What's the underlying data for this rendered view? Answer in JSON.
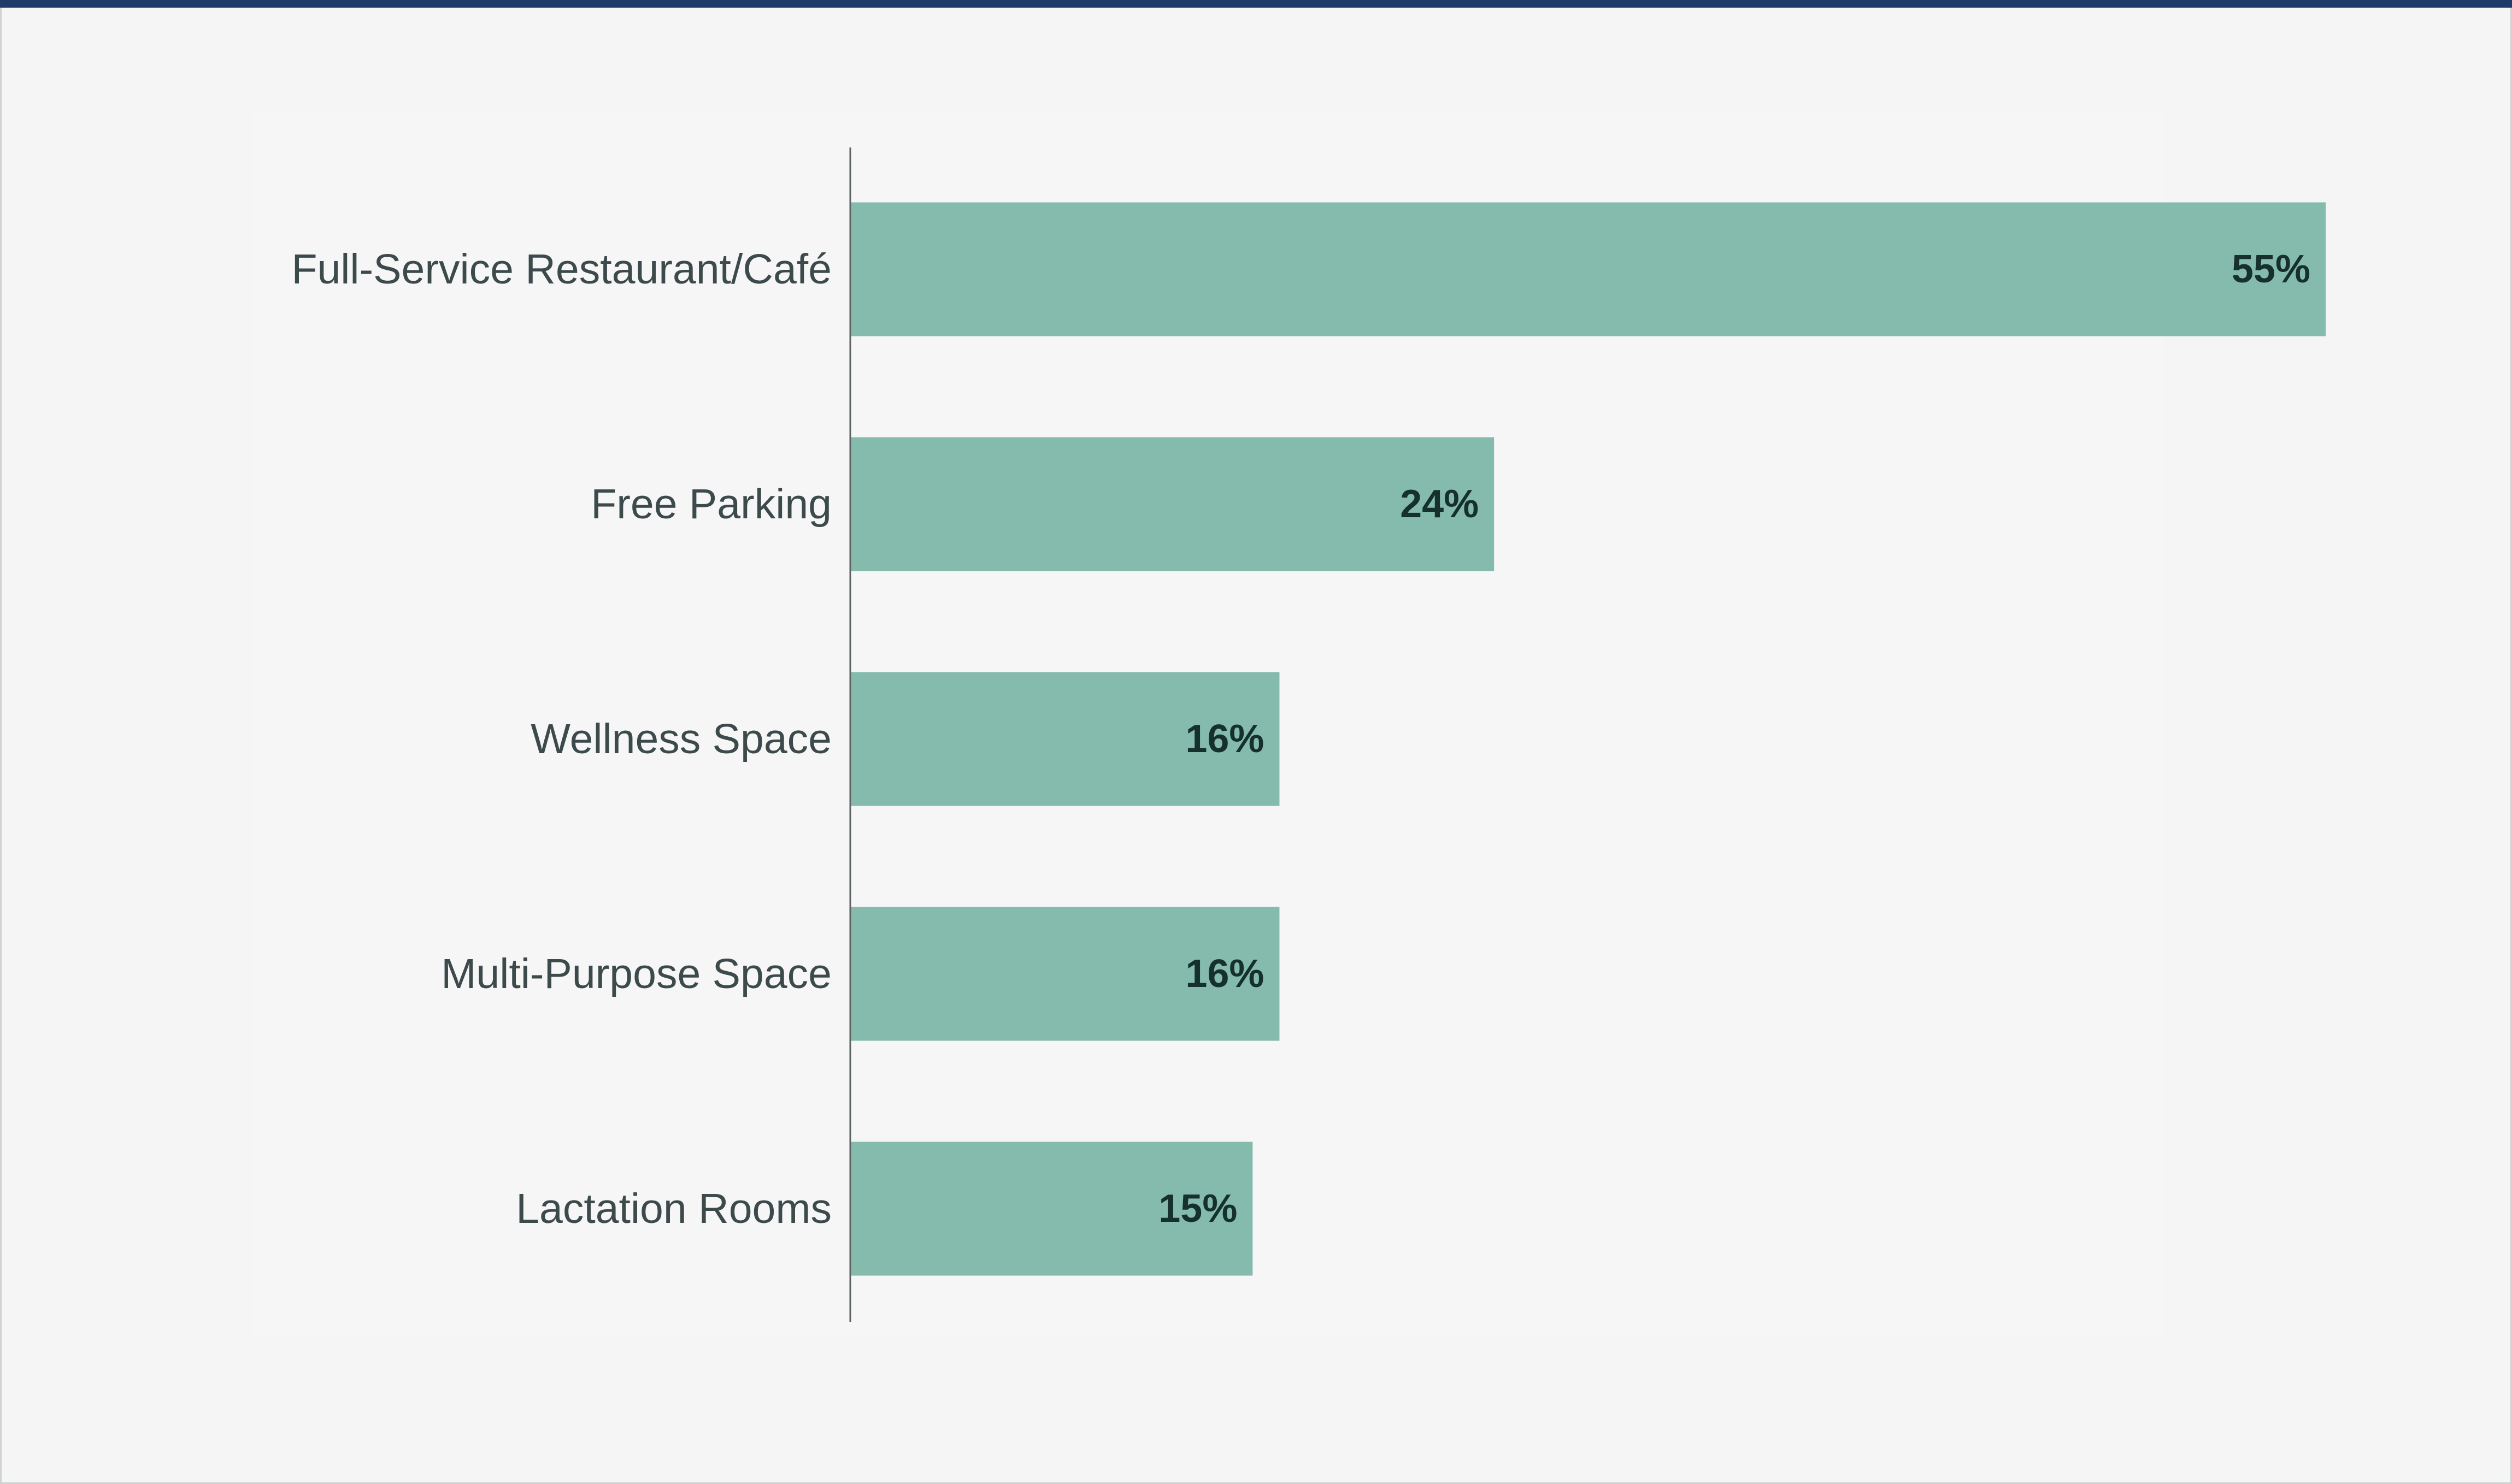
{
  "chart_data": {
    "type": "bar",
    "orientation": "horizontal",
    "categories": [
      "Full-Service Restaurant/Café",
      "Free Parking",
      "Wellness Space",
      "Multi-Purpose Space",
      "Lactation Rooms"
    ],
    "values": [
      55,
      24,
      16,
      16,
      15
    ],
    "value_labels": [
      "55%",
      "24%",
      "16%",
      "16%",
      "15%"
    ],
    "unit": "%",
    "title": "",
    "xlabel": "",
    "ylabel": "",
    "xlim": [
      0,
      55
    ],
    "grid": false,
    "legend": "none",
    "colors": {
      "bar": "#84bbad",
      "axis": "#5b6462",
      "category_text": "#3d4a4c",
      "value_text": "#16302e",
      "top_rule": "#1f3a68",
      "background": "#f4f5f4"
    }
  }
}
